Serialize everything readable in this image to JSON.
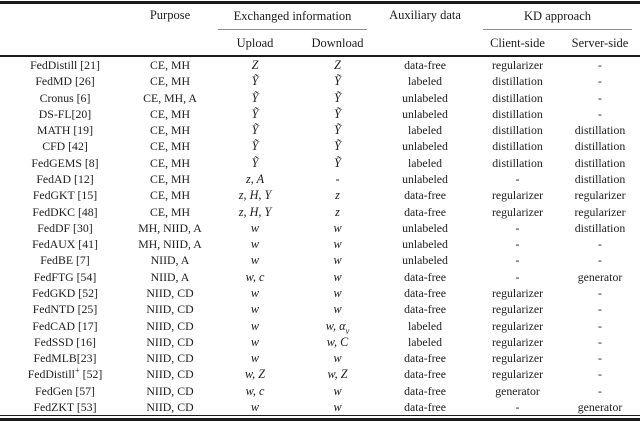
{
  "page": {
    "background_color": "#ffffff",
    "text_color": "#1c1c1c",
    "rule_color": "#1a1a1a",
    "group_rule_color": "#8e8e8e"
  },
  "table": {
    "columns": {
      "method": "",
      "purpose": "Purpose",
      "exchanged_group": "Exchanged information",
      "upload": "Upload",
      "download": "Download",
      "auxiliary": "Auxiliary data",
      "kd_group": "KD approach",
      "client_side": "Client-side",
      "server_side": "Server-side"
    },
    "rows": [
      {
        "method": "FedDistill [21]",
        "purpose": "CE, MH",
        "upload": "Z",
        "download": "Z",
        "auxiliary": "data-free",
        "client_side": "regularizer",
        "server_side": "-"
      },
      {
        "method": "FedMD [26]",
        "purpose": "CE, MH",
        "upload": "Ỹ",
        "download": "Ỹ",
        "auxiliary": "labeled",
        "client_side": "distillation",
        "server_side": "-"
      },
      {
        "method": "Cronus [6]",
        "purpose": "CE, MH, A",
        "upload": "Ỹ",
        "download": "Ỹ",
        "auxiliary": "unlabeled",
        "client_side": "distillation",
        "server_side": "-"
      },
      {
        "method": "DS-FL[20]",
        "purpose": "CE, MH",
        "upload": "Ỹ",
        "download": "Ỹ",
        "auxiliary": "unlabeled",
        "client_side": "distillation",
        "server_side": "-"
      },
      {
        "method": "MATH [19]",
        "purpose": "CE, MH",
        "upload": "Ỹ",
        "download": "Ỹ",
        "auxiliary": "labeled",
        "client_side": "distillation",
        "server_side": "distillation"
      },
      {
        "method": "CFD [42]",
        "purpose": "CE, MH",
        "upload": "Ỹ",
        "download": "Ỹ",
        "auxiliary": "unlabeled",
        "client_side": "distillation",
        "server_side": "distillation"
      },
      {
        "method": "FedGEMS [8]",
        "purpose": "CE, MH",
        "upload": "Ỹ",
        "download": "Ỹ",
        "auxiliary": "labeled",
        "client_side": "distillation",
        "server_side": "distillation"
      },
      {
        "method": "FedAD [12]",
        "purpose": "CE, MH",
        "upload": "z, A",
        "download": "-",
        "auxiliary": "unlabeled",
        "client_side": "-",
        "server_side": "distillation"
      },
      {
        "method": "FedGKT [15]",
        "purpose": "CE, MH",
        "upload": "z, H, Y",
        "download": "z",
        "auxiliary": "data-free",
        "client_side": "regularizer",
        "server_side": "regularizer"
      },
      {
        "method": "FedDKC [48]",
        "purpose": "CE, MH",
        "upload": "z, H, Y",
        "download": "z",
        "auxiliary": "data-free",
        "client_side": "regularizer",
        "server_side": "regularizer"
      },
      {
        "method": "FedDF [30]",
        "purpose": "MH, NIID, A",
        "upload": "w",
        "download": "w",
        "auxiliary": "unlabeled",
        "client_side": "-",
        "server_side": "distillation"
      },
      {
        "method": "FedAUX [41]",
        "purpose": "MH, NIID, A",
        "upload": "w",
        "download": "w",
        "auxiliary": "unlabeled",
        "client_side": "-",
        "server_side": "-"
      },
      {
        "method": "FedBE [7]",
        "purpose": "NIID, A",
        "upload": "w",
        "download": "w",
        "auxiliary": "unlabeled",
        "client_side": "-",
        "server_side": "-"
      },
      {
        "method": "FedFTG [54]",
        "purpose": "NIID, A",
        "upload": "w, c",
        "download": "w",
        "auxiliary": "data-free",
        "client_side": "-",
        "server_side": "generator"
      },
      {
        "method": "FedGKD [52]",
        "purpose": "NIID, CD",
        "upload": "w",
        "download": "w",
        "auxiliary": "data-free",
        "client_side": "regularizer",
        "server_side": "-"
      },
      {
        "method": "FedNTD [25]",
        "purpose": "NIID, CD",
        "upload": "w",
        "download": "w",
        "auxiliary": "data-free",
        "client_side": "regularizer",
        "server_side": "-"
      },
      {
        "method": "FedCAD [17]",
        "purpose": "NIID, CD",
        "upload": "w",
        "download": "w, α<sub>y</sub>",
        "auxiliary": "labeled",
        "client_side": "regularizer",
        "server_side": "-"
      },
      {
        "method": "FedSSD [16]",
        "purpose": "NIID, CD",
        "upload": "w",
        "download": "w, C",
        "auxiliary": "labeled",
        "client_side": "regularizer",
        "server_side": "-"
      },
      {
        "method": "FedMLB[23]",
        "purpose": "NIID, CD",
        "upload": "w",
        "download": "w",
        "auxiliary": "data-free",
        "client_side": "regularizer",
        "server_side": "-"
      },
      {
        "method": "FedDistill<sup>+</sup> [52]",
        "purpose": "NIID, CD",
        "upload": "w, Z",
        "download": "w, Z",
        "auxiliary": "data-free",
        "client_side": "regularizer",
        "server_side": "-"
      },
      {
        "method": "FedGen [57]",
        "purpose": "NIID, CD",
        "upload": "w, c",
        "download": "w",
        "auxiliary": "data-free",
        "client_side": "generator",
        "server_side": "-"
      },
      {
        "method": "FedZKT [53]",
        "purpose": "NIID, CD",
        "upload": "w",
        "download": "w",
        "auxiliary": "data-free",
        "client_side": "-",
        "server_side": "generator"
      }
    ]
  }
}
